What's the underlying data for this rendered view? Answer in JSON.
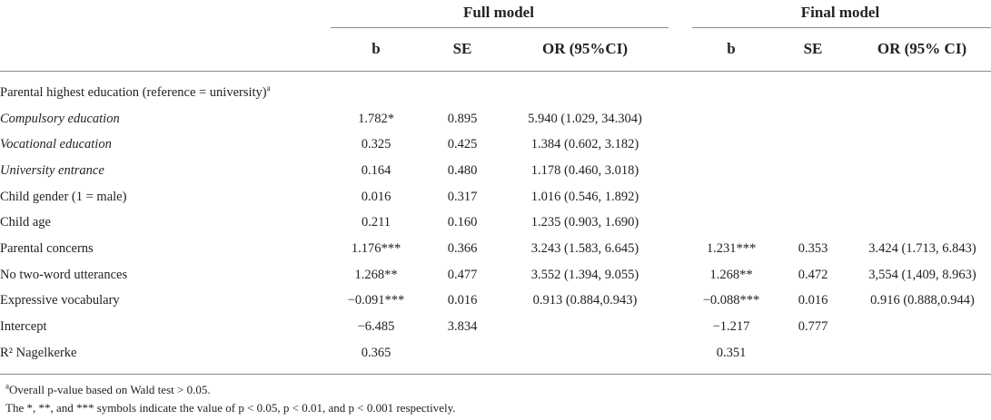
{
  "groups": {
    "full": "Full model",
    "final": "Final model"
  },
  "columns": {
    "full": [
      "b",
      "SE",
      "OR (95%CI)"
    ],
    "final": [
      "b",
      "SE",
      "OR (95% CI)"
    ]
  },
  "rows": [
    {
      "label": "Parental highest education (reference = university)",
      "sup": "a",
      "italic": false,
      "cells": [
        "",
        "",
        "",
        "",
        "",
        ""
      ]
    },
    {
      "label": "Compulsory education",
      "sup": "",
      "italic": true,
      "cells": [
        "1.782*",
        "0.895",
        "5.940 (1.029, 34.304)",
        "",
        "",
        ""
      ]
    },
    {
      "label": "Vocational education",
      "sup": "",
      "italic": true,
      "cells": [
        "0.325",
        "0.425",
        "1.384 (0.602, 3.182)",
        "",
        "",
        ""
      ]
    },
    {
      "label": "University entrance",
      "sup": "",
      "italic": true,
      "cells": [
        "0.164",
        "0.480",
        "1.178 (0.460, 3.018)",
        "",
        "",
        ""
      ]
    },
    {
      "label": "Child gender (1 = male)",
      "sup": "",
      "italic": false,
      "cells": [
        "0.016",
        "0.317",
        "1.016 (0.546, 1.892)",
        "",
        "",
        ""
      ]
    },
    {
      "label": "Child age",
      "sup": "",
      "italic": false,
      "cells": [
        "0.211",
        "0.160",
        "1.235 (0.903, 1.690)",
        "",
        "",
        ""
      ]
    },
    {
      "label": "Parental concerns",
      "sup": "",
      "italic": false,
      "cells": [
        "1.176***",
        "0.366",
        "3.243 (1.583, 6.645)",
        "1.231***",
        "0.353",
        "3.424 (1.713, 6.843)"
      ]
    },
    {
      "label": "No two-word utterances",
      "sup": "",
      "italic": false,
      "cells": [
        "1.268**",
        "0.477",
        "3.552 (1.394, 9.055)",
        "1.268**",
        "0.472",
        "3,554 (1,409, 8.963)"
      ]
    },
    {
      "label": "Expressive vocabulary",
      "sup": "",
      "italic": false,
      "cells": [
        "−0.091***",
        "0.016",
        "0.913 (0.884,0.943)",
        "−0.088***",
        "0.016",
        "0.916 (0.888,0.944)"
      ]
    },
    {
      "label": "Intercept",
      "sup": "",
      "italic": false,
      "cells": [
        "−6.485",
        "3.834",
        "",
        "−1.217",
        "0.777",
        ""
      ]
    },
    {
      "label": "R² Nagelkerke",
      "sup": "",
      "italic": false,
      "cells": [
        "0.365",
        "",
        "",
        "0.351",
        "",
        ""
      ]
    }
  ],
  "footnotes": {
    "note_a_sup": "a",
    "note_a": "Overall p-value based on Wald test > 0.05.",
    "note_sig": "The *, **, and *** symbols indicate the value of p < 0.05, p < 0.01, and p < 0.001 respectively."
  }
}
